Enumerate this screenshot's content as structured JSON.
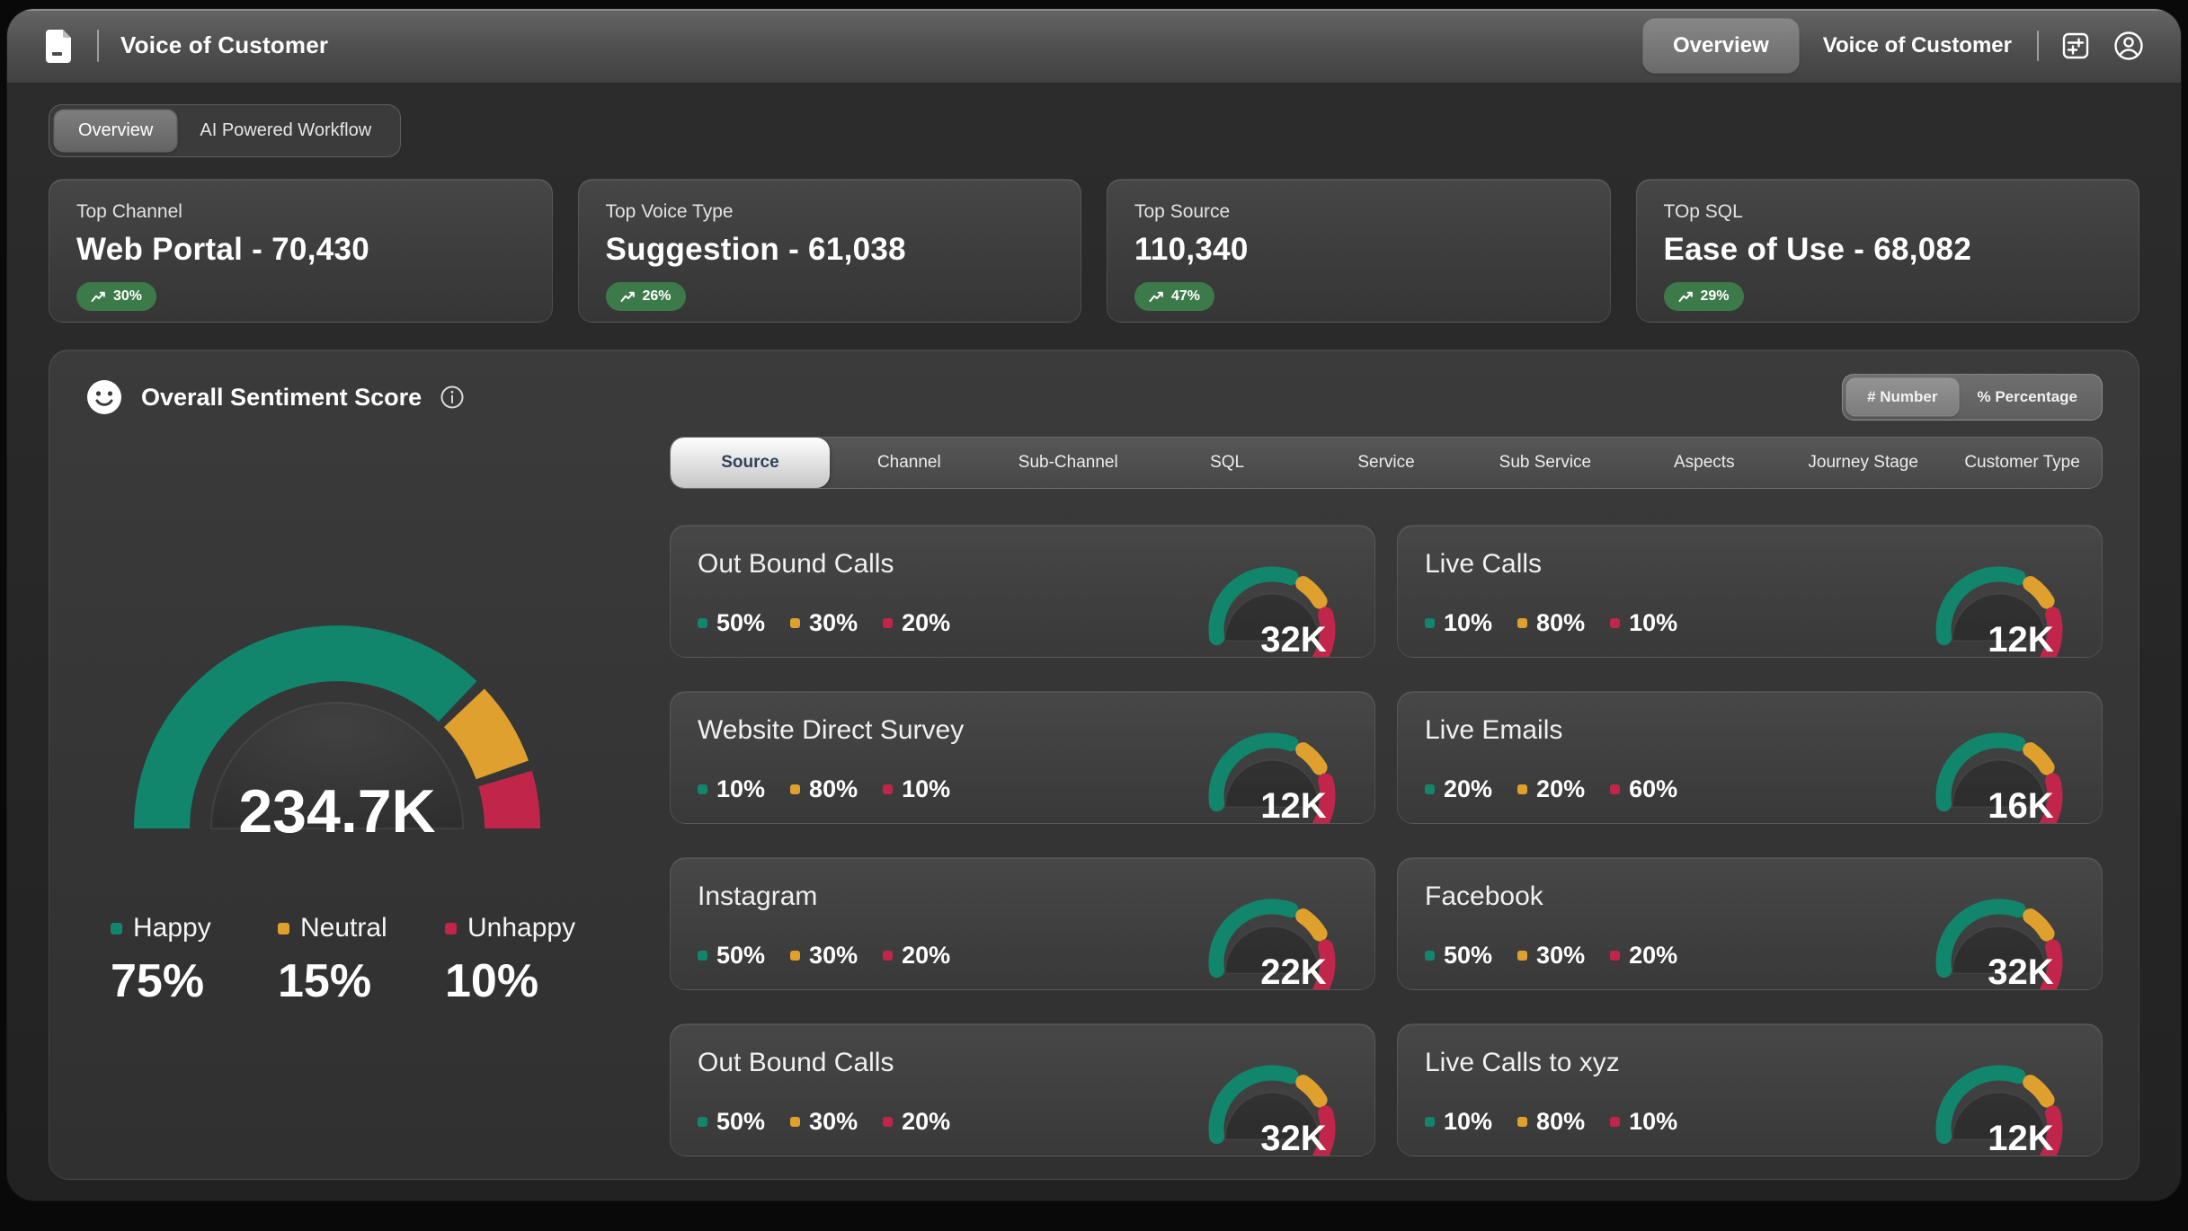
{
  "header": {
    "app_title": "Voice of Customer",
    "nav_overview_label": "Overview",
    "nav_context_label": "Voice of Customer"
  },
  "view_tabs": {
    "overview_label": "Overview",
    "ai_workflow_label": "AI Powered Workflow",
    "selected": "Overview"
  },
  "kpis": [
    {
      "label": "Top Channel",
      "value": "Web Portal - 70,430",
      "delta": "30%"
    },
    {
      "label": "Top Voice Type",
      "value": "Suggestion - 61,038",
      "delta": "26%"
    },
    {
      "label": "Top Source",
      "value": "110,340",
      "delta": "47%"
    },
    {
      "label": "TOp SQL",
      "value": "Ease of Use - 68,082",
      "delta": "29%"
    }
  ],
  "colors": {
    "happy": "#12866C",
    "neutral": "#DFA02E",
    "unhappy": "#C2254A",
    "badge_green": "#3d7a49"
  },
  "sentiment": {
    "title": "Overall Sentiment Score",
    "toggle": {
      "number_label": "# Number",
      "percentage_label": "% Percentage",
      "selected": "# Number"
    },
    "gauge": {
      "total": "234.7K",
      "segments": [
        {
          "name": "Happy",
          "pct": 75
        },
        {
          "name": "Neutral",
          "pct": 15
        },
        {
          "name": "Unhappy",
          "pct": 10
        }
      ]
    },
    "legend": [
      {
        "label": "Happy",
        "value": "75%"
      },
      {
        "label": "Neutral",
        "value": "15%"
      },
      {
        "label": "Unhappy",
        "value": "10%"
      }
    ],
    "category_tabs": [
      "Source",
      "Channel",
      "Sub-Channel",
      "SQL",
      "Service",
      "Sub Service",
      "Aspects",
      "Journey Stage",
      "Customer Type"
    ],
    "selected_tab": "Source",
    "cards": [
      {
        "title": "Out Bound Calls",
        "happy": "50%",
        "neutral": "30%",
        "unhappy": "20%",
        "value": "32K"
      },
      {
        "title": "Live Calls",
        "happy": "10%",
        "neutral": "80%",
        "unhappy": "10%",
        "value": "12K"
      },
      {
        "title": "Website Direct Survey",
        "happy": "10%",
        "neutral": "80%",
        "unhappy": "10%",
        "value": "12K"
      },
      {
        "title": "Live Emails",
        "happy": "20%",
        "neutral": "20%",
        "unhappy": "60%",
        "value": "16K"
      },
      {
        "title": "Instagram",
        "happy": "50%",
        "neutral": "30%",
        "unhappy": "20%",
        "value": "22K"
      },
      {
        "title": "Facebook",
        "happy": "50%",
        "neutral": "30%",
        "unhappy": "20%",
        "value": "32K"
      },
      {
        "title": "Out Bound Calls",
        "happy": "50%",
        "neutral": "30%",
        "unhappy": "20%",
        "value": "32K"
      },
      {
        "title": "Live Calls to xyz",
        "happy": "10%",
        "neutral": "80%",
        "unhappy": "10%",
        "value": "12K"
      }
    ]
  },
  "chart_data": {
    "type": "pie",
    "title": "Overall Sentiment Score",
    "categories": [
      "Happy",
      "Neutral",
      "Unhappy"
    ],
    "values": [
      75,
      15,
      10
    ],
    "center_total": "234.7K",
    "legend_position": "bottom",
    "sub_gauges": [
      {
        "label": "Out Bound Calls",
        "happy": 50,
        "neutral": 30,
        "unhappy": 20,
        "total": "32K"
      },
      {
        "label": "Live Calls",
        "happy": 10,
        "neutral": 80,
        "unhappy": 10,
        "total": "12K"
      },
      {
        "label": "Website Direct Survey",
        "happy": 10,
        "neutral": 80,
        "unhappy": 10,
        "total": "12K"
      },
      {
        "label": "Live Emails",
        "happy": 20,
        "neutral": 20,
        "unhappy": 60,
        "total": "16K"
      },
      {
        "label": "Instagram",
        "happy": 50,
        "neutral": 30,
        "unhappy": 20,
        "total": "22K"
      },
      {
        "label": "Facebook",
        "happy": 50,
        "neutral": 30,
        "unhappy": 20,
        "total": "32K"
      },
      {
        "label": "Out Bound Calls",
        "happy": 50,
        "neutral": 30,
        "unhappy": 20,
        "total": "32K"
      },
      {
        "label": "Live Calls to xyz",
        "happy": 10,
        "neutral": 80,
        "unhappy": 10,
        "total": "12K"
      }
    ]
  }
}
